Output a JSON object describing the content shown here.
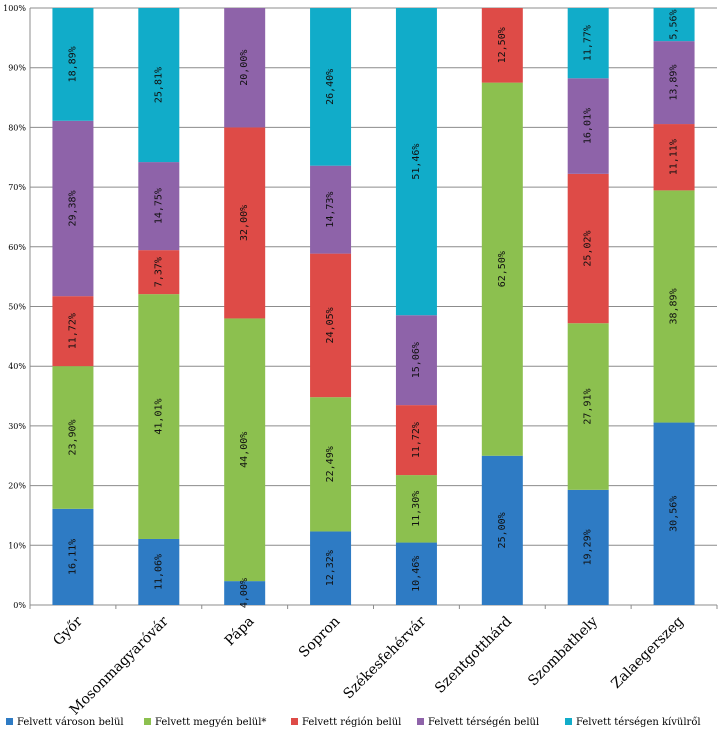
{
  "chart_data": {
    "type": "bar",
    "stacked": true,
    "percent": true,
    "title": "",
    "xlabel": "",
    "ylabel": "",
    "ylim": [
      0,
      100
    ],
    "grid": true,
    "legend_position": "bottom",
    "yticks": [
      "0%",
      "10%",
      "20%",
      "30%",
      "40%",
      "50%",
      "60%",
      "70%",
      "80%",
      "90%",
      "100%"
    ],
    "categories": [
      "Győr",
      "Mosonmagyaróvár",
      "Pápa",
      "Sopron",
      "Székesfehérvár",
      "Szentgotthárd",
      "Szombathely",
      "Zalaegerszeg"
    ],
    "series": [
      {
        "name": "Felvett városon belül",
        "color": "#2e7bc4",
        "values": [
          16.11,
          11.06,
          4.0,
          12.32,
          10.46,
          25.0,
          19.29,
          30.56
        ],
        "labels": [
          "16,11%",
          "11,06%",
          "4,00%",
          "12,32%",
          "10,46%",
          "25,00%",
          "19,29%",
          "30,56%"
        ]
      },
      {
        "name": "Felvett megyén belül*",
        "color": "#8cc04f",
        "values": [
          23.9,
          41.01,
          44.0,
          22.49,
          11.3,
          62.5,
          27.91,
          38.89
        ],
        "labels": [
          "23,90%",
          "41,01%",
          "44,00%",
          "22,49%",
          "11,30%",
          "62,50%",
          "27,91%",
          "38,89%"
        ]
      },
      {
        "name": "Felvett régión belül",
        "color": "#de4b47",
        "values": [
          11.72,
          7.37,
          32.0,
          24.05,
          11.72,
          12.5,
          25.02,
          11.11
        ],
        "labels": [
          "11,72%",
          "7,37%",
          "32,00%",
          "24,05%",
          "11,72%",
          "12,50%",
          "25,02%",
          "11,11%"
        ]
      },
      {
        "name": "Felvett térségén belül",
        "color": "#8e63a9",
        "values": [
          29.38,
          14.75,
          20.0,
          14.73,
          15.06,
          0,
          16.01,
          13.89
        ],
        "labels": [
          "29,38%",
          "14,75%",
          "20,00%",
          "14,73%",
          "15,06%",
          "",
          "16,01%",
          "13,89%"
        ]
      },
      {
        "name": "Felvett térségen kívülről",
        "color": "#11acc9",
        "values": [
          18.89,
          25.81,
          0,
          26.4,
          51.46,
          0,
          11.77,
          5.56
        ],
        "labels": [
          "18,89%",
          "25,81%",
          "",
          "26,40%",
          "51,46%",
          "",
          "11,77%",
          "5,56%"
        ]
      }
    ]
  }
}
